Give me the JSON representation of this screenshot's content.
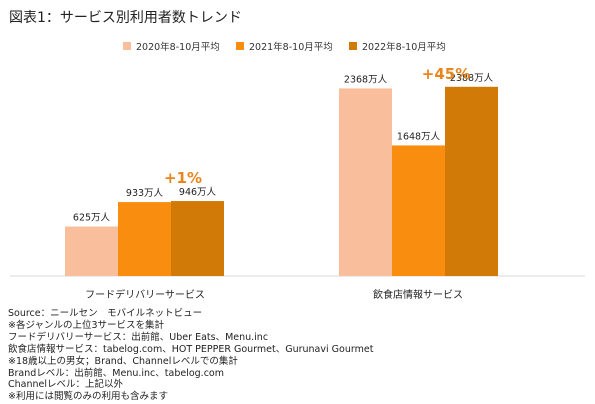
{
  "title": "図表1：サービス別利用者数トレンド",
  "chart_data": {
    "type": "bar",
    "categories": [
      "フードデリバリーサービス",
      "飲食店情報サービス"
    ],
    "series": [
      {
        "name": "2020年8-10月平均",
        "values": [
          625,
          2368
        ],
        "labels": [
          "625万人",
          "2368万人"
        ],
        "color": "#F9BF9C"
      },
      {
        "name": "2021年8-10月平均",
        "values": [
          933,
          1648
        ],
        "labels": [
          "933万人",
          "1648万人"
        ],
        "color": "#F98D10"
      },
      {
        "name": "2022年8-10月平均",
        "values": [
          946,
          2388
        ],
        "labels": [
          "946万人",
          "2388万人"
        ],
        "color": "#D27A07"
      }
    ],
    "annotations": [
      "+1%",
      "+45%"
    ],
    "annotation_color": "#E8851C",
    "ylim": [
      0,
      2600
    ],
    "legend": "top",
    "grid": false
  },
  "notes": [
    "Source：ニールセン　モバイルネットビュー",
    "※各ジャンルの上位3サービスを集計",
    "フードデリバリーサービス：出前館、Uber Eats、Menu.inc",
    "飲食店情報サービス：tabelog.com、HOT PEPPER Gourmet、Gurunavi Gourmet",
    "※18歳以上の男女；Brand、Channelレベルでの集計",
    "Brandレベル：出前館、Menu.inc、tabelog.com",
    "Channelレベル：上記以外",
    "※利用には閲覧のみの利用も含みます"
  ]
}
